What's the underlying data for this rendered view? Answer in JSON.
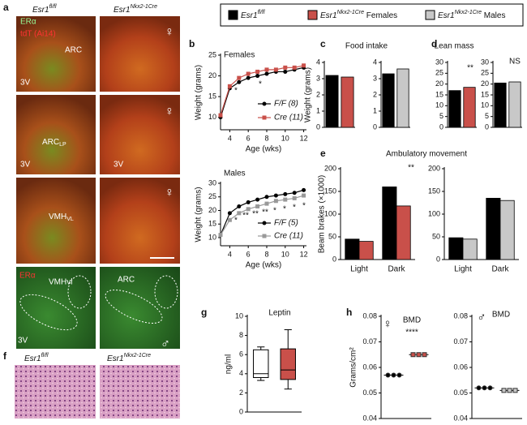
{
  "panel_labels": [
    "a",
    "b",
    "c",
    "d",
    "e",
    "f",
    "g",
    "h"
  ],
  "legend": [
    {
      "base": "Esr1",
      "sup": "fl/fl",
      "tail": "",
      "color": "#000000"
    },
    {
      "base": "Esr1",
      "sup": "Nkx2-1Cre",
      "tail": " Females",
      "color": "#c9504a"
    },
    {
      "base": "Esr1",
      "sup": "Nkx2-1Cre",
      "tail": " Males",
      "color": "#c8c8c8"
    }
  ],
  "panel_a": {
    "columns": [
      {
        "base": "Esr1",
        "sup": "fl/fl"
      },
      {
        "base": "Esr1",
        "sup": "Nkx2-1Cre"
      }
    ],
    "labels": [
      "ERα",
      "tdT (Ai14)",
      "ARC",
      "3V",
      "♀",
      {
        "base": "ARC",
        "sub": "LP"
      },
      "3V",
      "3V",
      "♀",
      {
        "base": "VMH",
        "sub": "VL"
      },
      "♀",
      "ERα",
      "VMHvl",
      "ARC",
      "3V",
      "♂"
    ]
  },
  "panel_f": {
    "columns": [
      {
        "base": "Esr1",
        "sup": "fl/fl"
      },
      {
        "base": "Esr1",
        "sup": "Nkx2-1Cre"
      }
    ]
  },
  "chart_data": [
    {
      "type": "line",
      "title": "Females",
      "xlabel": "Age (wks)",
      "ylabel": "Weight (grams)",
      "x": [
        3,
        4,
        5,
        6,
        7,
        8,
        9,
        10,
        11,
        12
      ],
      "xlim": [
        3,
        12.3
      ],
      "xticks": [
        4,
        6,
        8,
        10,
        12
      ],
      "ylim": [
        7,
        25
      ],
      "yticks": [
        10,
        15,
        20,
        25
      ],
      "series": [
        {
          "name": "F/F (8)",
          "color": "#000000",
          "marker": "circle",
          "values": [
            10,
            17,
            18.5,
            19.5,
            20,
            20.5,
            21,
            21,
            21.5,
            22
          ]
        },
        {
          "name": "Cre (11)",
          "color": "#c9504a",
          "marker": "square",
          "values": [
            10.5,
            17.5,
            19.5,
            20.5,
            21,
            21.5,
            21.5,
            22,
            22,
            22.5
          ]
        }
      ],
      "annotations": [
        "*",
        "*"
      ]
    },
    {
      "type": "line",
      "title": "Males",
      "xlabel": "Age (wks)",
      "ylabel": "Weight (grams)",
      "x": [
        3,
        4,
        5,
        6,
        7,
        8,
        9,
        10,
        11,
        12
      ],
      "xlim": [
        3,
        12.3
      ],
      "xticks": [
        4,
        6,
        8,
        10,
        12
      ],
      "ylim": [
        7,
        30
      ],
      "yticks": [
        10,
        15,
        20,
        25,
        30
      ],
      "series": [
        {
          "name": "F/F (5)",
          "color": "#000000",
          "marker": "circle",
          "values": [
            11,
            19,
            21.5,
            23,
            24,
            25,
            25.5,
            26,
            26.5,
            27.5
          ]
        },
        {
          "name": "Cre (11)",
          "color": "#999999",
          "marker": "square",
          "values": [
            11,
            16.5,
            19,
            20.5,
            21.5,
            22.5,
            23.5,
            24,
            24.5,
            25.5
          ]
        }
      ],
      "annotations": [
        "*",
        "**",
        "**",
        "**",
        "*",
        "*",
        "*",
        "*"
      ]
    },
    {
      "type": "bar",
      "title": "Food intake",
      "ylabel": "Weight (grams)",
      "values": [
        3.2,
        3.1
      ],
      "colors": [
        "#000000",
        "#c9504a"
      ],
      "ylim": [
        0,
        4
      ],
      "yticks": [
        0,
        1,
        2,
        3,
        4
      ]
    },
    {
      "type": "bar",
      "values": [
        3.3,
        3.6
      ],
      "colors": [
        "#000000",
        "#c8c8c8"
      ],
      "ylim": [
        0,
        4
      ],
      "yticks": [
        0,
        1,
        2,
        3,
        4
      ]
    },
    {
      "type": "bar",
      "title": "Lean mass",
      "values": [
        17,
        18.5
      ],
      "colors": [
        "#000000",
        "#c9504a"
      ],
      "ylim": [
        0,
        30
      ],
      "yticks": [
        0,
        5,
        10,
        15,
        20,
        25,
        30
      ],
      "annotations": [
        "**"
      ]
    },
    {
      "type": "bar",
      "values": [
        20.5,
        21
      ],
      "colors": [
        "#000000",
        "#c8c8c8"
      ],
      "ylim": [
        0,
        30
      ],
      "yticks": [
        0,
        5,
        10,
        15,
        20,
        25,
        30
      ],
      "annotations": [
        "NS"
      ]
    },
    {
      "type": "grouped_bar",
      "title": "Ambulatory movement",
      "ylabel": "Beam brakes (×1000)",
      "categories": [
        "Light",
        "Dark"
      ],
      "series": [
        {
          "color": "#000000",
          "values": [
            45,
            160
          ]
        },
        {
          "color": "#c9504a",
          "values": [
            40,
            118
          ]
        }
      ],
      "ylim": [
        0,
        200
      ],
      "yticks": [
        0,
        50,
        100,
        150,
        200
      ],
      "annotations": [
        "**"
      ]
    },
    {
      "type": "grouped_bar",
      "categories": [
        "Light",
        "Dark"
      ],
      "series": [
        {
          "color": "#000000",
          "values": [
            48,
            135
          ]
        },
        {
          "color": "#c8c8c8",
          "values": [
            45,
            130
          ]
        }
      ],
      "ylim": [
        0,
        200
      ],
      "yticks": [
        0,
        50,
        100,
        150,
        200
      ]
    },
    {
      "type": "box",
      "title": "Leptin",
      "ylabel": "ng/ml",
      "ylim": [
        0,
        10
      ],
      "yticks": [
        0,
        2,
        4,
        6,
        8,
        10
      ],
      "boxes": [
        {
          "min": 3.3,
          "q1": 3.6,
          "median": 4,
          "q3": 6.5,
          "max": 6.8,
          "color": "#ffffff"
        },
        {
          "min": 2.4,
          "q1": 3.4,
          "median": 4.4,
          "q3": 6.6,
          "max": 8.6,
          "color": "#c9504a"
        }
      ]
    },
    {
      "type": "dot",
      "title": "BMD",
      "symbol": "♀",
      "ylabel": "Grams/cm²",
      "ylim": [
        0.04,
        0.08
      ],
      "yticks": [
        0.04,
        0.05,
        0.06,
        0.07,
        0.08
      ],
      "values": [
        0.057,
        0.065
      ],
      "colors": [
        "#000000",
        "#c9504a"
      ],
      "annotations": [
        "****"
      ]
    },
    {
      "type": "dot",
      "title": "BMD",
      "symbol": "♂",
      "ylim": [
        0.04,
        0.08
      ],
      "yticks": [
        0.04,
        0.05,
        0.06,
        0.07,
        0.08
      ],
      "values": [
        0.052,
        0.051
      ],
      "colors": [
        "#000000",
        "#c8c8c8"
      ]
    }
  ]
}
